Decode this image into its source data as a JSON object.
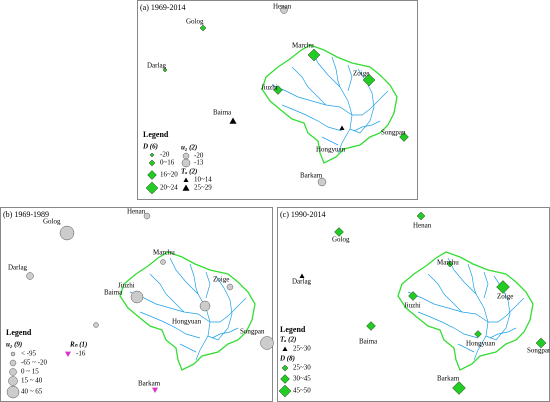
{
  "panels": [
    {
      "title": "(a) 1969-2014",
      "stations": [
        "Henan",
        "Golog",
        "Darlag",
        "Marchu",
        "Zoige",
        "Jiuzhi",
        "Baima",
        "Hongyuan",
        "Songpan",
        "Barkam"
      ],
      "legend": {
        "title": "Legend",
        "groups": [
          {
            "title": "D (6)",
            "items": [
              "-20",
              "0~16",
              "16~20",
              "20~24"
            ]
          },
          {
            "title": "u₂ (2)",
            "items": [
              "-20",
              "-13"
            ]
          },
          {
            "title": "Tₐ (2)",
            "items": [
              "10~14",
              "25~29"
            ]
          }
        ]
      }
    },
    {
      "title": "(b) 1969-1989",
      "stations": [
        "Henan",
        "Golog",
        "Darlag",
        "Marchu",
        "Zoige",
        "Jiuzhi",
        "Baima",
        "Hongyuan",
        "Songpan",
        "Barkam"
      ],
      "legend": {
        "title": "Legend",
        "groups": [
          {
            "title": "u₂ (9)",
            "items": [
              "< -95",
              "-65 ~ -20",
              "0 ~ 15",
              "15 ~ 40",
              "40 ~ 65"
            ]
          },
          {
            "title": "Rₙ (1)",
            "items": [
              "-16"
            ]
          }
        ]
      }
    },
    {
      "title": "(c) 1990-2014",
      "stations": [
        "Henan",
        "Golog",
        "Darlag",
        "Marchu",
        "Zoige",
        "Jiuzhi",
        "Baima",
        "Hongyuan",
        "Songpan",
        "Barkam"
      ],
      "legend": {
        "title": "Legend",
        "groups": [
          {
            "title": "Tₐ (2)",
            "items": [
              "25~30"
            ]
          },
          {
            "title": "D (8)",
            "items": [
              "25~30",
              "30~45",
              "45~50"
            ]
          }
        ]
      }
    }
  ]
}
